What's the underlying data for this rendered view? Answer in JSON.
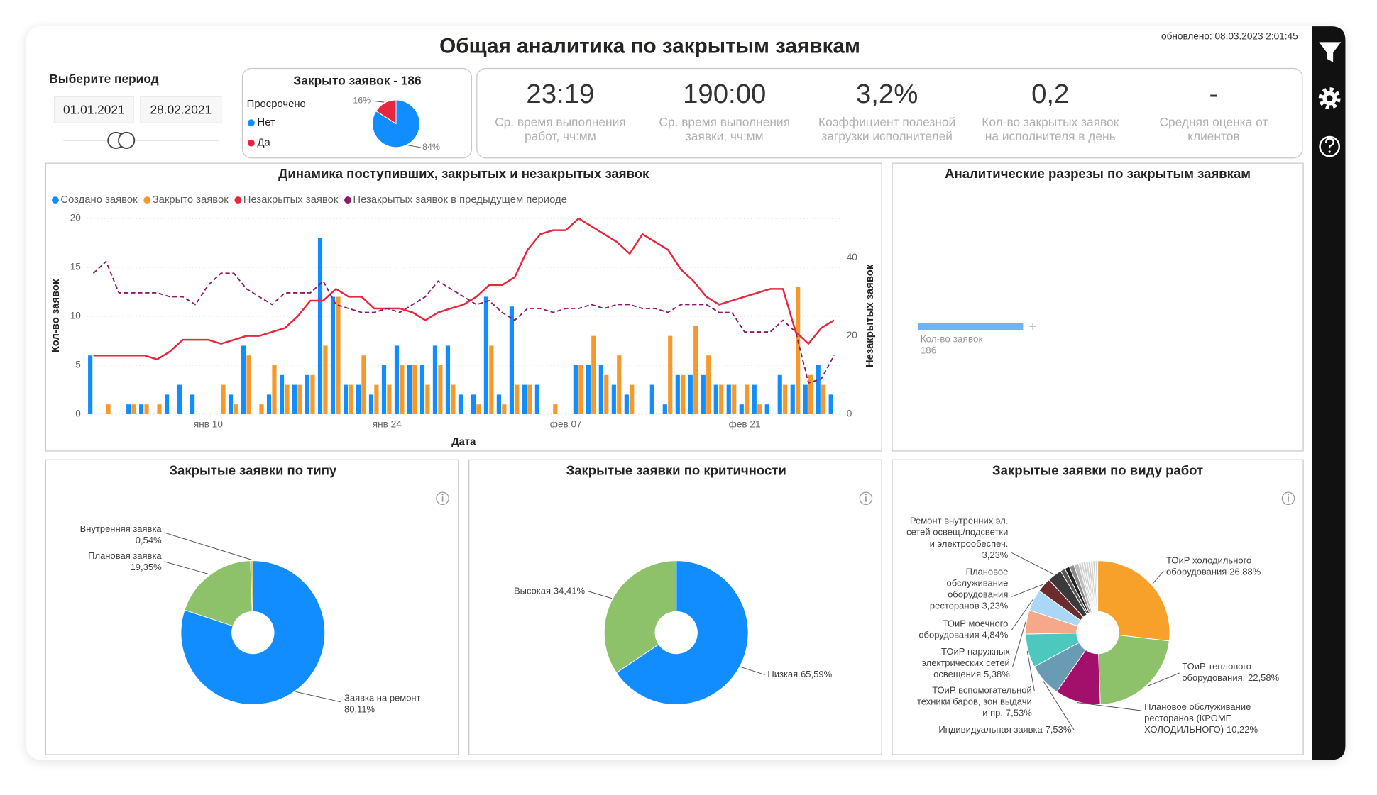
{
  "title": "Общая аналитика по закрытым заявкам",
  "updated": "обновлено: 08.03.2023 2:01:45",
  "period": {
    "label": "Выберите период",
    "start": "01.01.2021",
    "end": "28.02.2021"
  },
  "kpis": [
    {
      "value": "23:19",
      "label": "Ср. время выполнения\nработ, чч:мм"
    },
    {
      "value": "190:00",
      "label": "Ср. время выполнения\nзаявки, чч:мм"
    },
    {
      "value": "3,2%",
      "label": "Коэффициент полезной\nзагрузки исполнителей"
    },
    {
      "value": "0,2",
      "label": "Кол-во закрытых заявок\nна исполнителя в день"
    },
    {
      "value": "-",
      "label": "Средняя оценка от\nклиентов"
    }
  ],
  "chart_data": [
    {
      "type": "pie",
      "title": "Закрыто заявок - 186",
      "legend_title": "Просрочено",
      "categories": [
        "Нет",
        "Да"
      ],
      "values": [
        84,
        16
      ],
      "value_labels": [
        "84%",
        "16%"
      ],
      "colors": [
        "#118dff",
        "#e8273f"
      ]
    },
    {
      "type": "combo",
      "title": "Динамика поступивших, закрытых и незакрытых заявок",
      "x_label": "Дата",
      "y_label": "Кол-во заявок",
      "y2_label": "Незакрытых заявок",
      "categories": [
        null,
        null,
        null,
        null,
        null,
        null,
        null,
        null,
        null,
        "янв 10",
        null,
        null,
        null,
        null,
        null,
        null,
        null,
        null,
        null,
        null,
        null,
        null,
        null,
        "янв 24",
        null,
        null,
        null,
        null,
        null,
        null,
        null,
        null,
        null,
        null,
        null,
        null,
        null,
        "фев 07",
        null,
        null,
        null,
        null,
        null,
        null,
        null,
        null,
        null,
        null,
        null,
        null,
        null,
        "фев 21",
        null,
        null,
        null,
        null,
        null,
        null,
        null
      ],
      "ylim": [
        0,
        20
      ],
      "yticks": [
        0,
        5,
        10,
        15,
        20
      ],
      "y2lim": [
        0,
        50
      ],
      "y2ticks": [
        0,
        20,
        40
      ],
      "grid": true,
      "series": [
        {
          "name": "Создано заявок",
          "type": "bar",
          "color": "#118dff",
          "values": [
            6,
            0,
            0,
            1,
            1,
            0,
            2,
            3,
            2,
            0,
            0,
            2,
            7,
            0,
            2,
            4,
            3,
            4,
            18,
            12,
            3,
            3,
            2,
            5,
            7,
            5,
            5,
            7,
            7,
            2,
            2,
            12,
            2,
            11,
            3,
            3,
            0,
            0,
            5,
            5,
            5,
            3,
            2,
            0,
            3,
            1,
            4,
            4,
            4,
            3,
            3,
            1,
            3,
            1,
            4,
            3,
            3,
            5,
            2
          ]
        },
        {
          "name": "Закрыто заявок",
          "type": "bar",
          "color": "#f7982a",
          "values": [
            0,
            1,
            0,
            1,
            1,
            1,
            0,
            0,
            0,
            0,
            3,
            1,
            6,
            1,
            5,
            3,
            3,
            4,
            7,
            12,
            3,
            6,
            3,
            3,
            5,
            5,
            3,
            5,
            3,
            0,
            1,
            7,
            1,
            3,
            3,
            0,
            1,
            0,
            5,
            8,
            4,
            6,
            3,
            0,
            0,
            8,
            4,
            9,
            6,
            3,
            3,
            3,
            1,
            0,
            3,
            13,
            4,
            3,
            0
          ]
        },
        {
          "name": "Незакрытых заявок",
          "type": "line",
          "axis": "y2",
          "color": "#e8273f",
          "values": [
            15,
            15,
            15,
            15,
            15,
            14,
            16,
            19,
            19,
            19,
            18,
            19,
            20,
            20,
            21,
            22,
            25,
            29,
            29,
            32,
            30,
            30,
            27,
            27,
            27,
            26,
            24,
            26,
            27,
            28,
            30,
            33,
            33,
            35,
            42,
            46,
            47,
            47,
            50,
            48,
            46,
            44,
            41,
            46,
            44,
            42,
            37,
            34,
            30,
            28,
            29,
            30,
            31,
            32,
            32,
            21,
            18,
            22,
            24
          ]
        },
        {
          "name": "Незакрытых заявок в предыдущем периоде",
          "type": "line",
          "axis": "y2",
          "color": "#8b1a6b",
          "dashed": true,
          "values": [
            36,
            39,
            31,
            31,
            31,
            31,
            30,
            30,
            28,
            33,
            36,
            36,
            32,
            30,
            28,
            31,
            31,
            31,
            34,
            28,
            27,
            26,
            26,
            27,
            26,
            28,
            30,
            34,
            32,
            30,
            28,
            29,
            26,
            24,
            27,
            27,
            26,
            27,
            27,
            28,
            27,
            28,
            28,
            27,
            27,
            26,
            28,
            28,
            28,
            26,
            26,
            21,
            21,
            21,
            24,
            21,
            8,
            9,
            15
          ]
        }
      ]
    },
    {
      "type": "decomposition",
      "title": "Аналитические разрезы по закрытым заявкам",
      "categories": [
        "Кол-во заявок"
      ],
      "values": [
        186
      ],
      "color": "#6cb4f5"
    },
    {
      "type": "donut",
      "title": "Закрытые заявки по типу",
      "categories": [
        "Заявка на ремонт",
        "Плановая заявка",
        "Внутренняя заявка"
      ],
      "values": [
        80.11,
        19.35,
        0.54
      ],
      "value_labels": [
        "80,11%",
        "19,35%",
        "0,54%"
      ],
      "colors": [
        "#118dff",
        "#8dc26b",
        "#e3c25d"
      ]
    },
    {
      "type": "donut",
      "title": "Закрытые заявки по критичности",
      "categories": [
        "Низкая",
        "Высокая"
      ],
      "values": [
        65.59,
        34.41
      ],
      "value_labels": [
        "65,59%",
        "34,41%"
      ],
      "colors": [
        "#118dff",
        "#8dc26b"
      ]
    },
    {
      "type": "donut",
      "title": "Закрытые заявки по виду работ",
      "categories": [
        "ТОиР холодильного\nоборудования",
        "ТОиР теплового\nоборудования.",
        "Плановое обслуживание\nресторанов (КРОМЕ\nХОЛОДИЛЬНОГО)",
        "Индивидуальная заявка",
        "ТОиР вспомогательной\nтехники баров, зон выдачи\nи пр.",
        "ТОиР наружных\nэлектрических сетей\nосвещения",
        "ТОиР моечного\nоборудования",
        "Плановое\nобслуживание\nоборудования\nресторанов",
        "Ремонт внутренних эл.\nсетей освещ./подсветки\nи электрообеспеч.",
        null,
        null,
        null,
        null,
        null,
        null,
        null,
        null,
        null,
        null,
        null,
        null
      ],
      "values": [
        26.88,
        22.58,
        10.22,
        7.53,
        7.53,
        5.38,
        4.84,
        3.23,
        3.23,
        1.08,
        1.08,
        1.08,
        1.08,
        0.54,
        0.54,
        0.54,
        0.54,
        0.54,
        0.54,
        0.54,
        0.54
      ],
      "value_labels": [
        "26,88%",
        "22,58%",
        "10,22%",
        "7,53%",
        "7,53%",
        "5,38%",
        "4,84%",
        "3,23%",
        "3,23%",
        null,
        null,
        null,
        null,
        null,
        null,
        null,
        null,
        null,
        null,
        null,
        null
      ],
      "colors": [
        "#f7a12b",
        "#8dc26b",
        "#a2106b",
        "#6a9bb5",
        "#4cc8bf",
        "#f5a88a",
        "#a9d7f5",
        "#6b2c2c",
        "#3a3a3a",
        "#555555",
        "#222222",
        "#8a8a8a",
        "#bdbdbd",
        "#cfcfcf",
        "#d4d4d4",
        "#cfcfcf",
        "#d4d4d4",
        "#cfcfcf",
        "#d4d4d4",
        "#cfcfcf",
        "#d4d4d4"
      ]
    }
  ]
}
